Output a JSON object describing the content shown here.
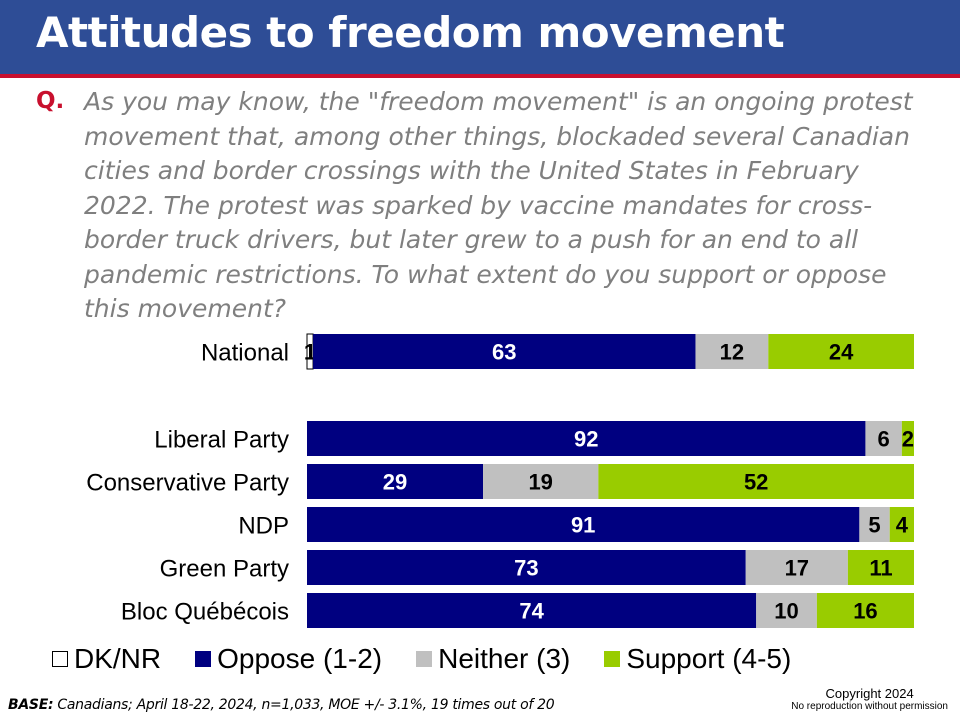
{
  "title": "Attitudes to freedom movement",
  "question": {
    "marker": "Q.",
    "text": "As you may know, the \"freedom movement\" is an ongoing protest movement that, among other things, blockaded several Canadian cities and border crossings with the United States in February 2022. The protest was sparked by vaccine mandates for cross-border truck drivers, but later grew to a push for an end to all pandemic restrictions. To what extent do you support or oppose this movement?"
  },
  "colors": {
    "header": "#2e4d96",
    "header_rule": "#c8102e",
    "dk_nr": "#ffffff",
    "oppose": "#000080",
    "neither": "#c0c0c0",
    "support": "#99cc00"
  },
  "chart_data": {
    "type": "bar",
    "orientation": "horizontal",
    "stacked": true,
    "categories": [
      "National",
      "Liberal Party",
      "Conservative Party",
      "NDP",
      "Green Party",
      "Bloc Québécois"
    ],
    "series": [
      {
        "name": "DK/NR",
        "values": [
          1,
          0,
          0,
          0,
          0,
          0
        ]
      },
      {
        "name": "Oppose (1-2)",
        "values": [
          63,
          92,
          29,
          91,
          73,
          74
        ]
      },
      {
        "name": "Neither (3)",
        "values": [
          12,
          6,
          19,
          5,
          17,
          10
        ]
      },
      {
        "name": "Support (4-5)",
        "values": [
          24,
          2,
          52,
          4,
          11,
          16
        ]
      }
    ],
    "legend_position": "bottom",
    "grid": false
  },
  "legend": {
    "items": [
      {
        "label": "DK/NR",
        "color": "#ffffff"
      },
      {
        "label": "Oppose (1-2)",
        "color": "#000080"
      },
      {
        "label": "Neither (3)",
        "color": "#c0c0c0"
      },
      {
        "label": "Support (4-5)",
        "color": "#99cc00"
      }
    ]
  },
  "footer": {
    "base_label": "BASE:",
    "base_text": "Canadians; April 18-22, 2024, n=1,033, MOE +/- 3.1%, 19 times out of 20",
    "copyright": "Copyright 2024",
    "no_reproduction": "No reproduction without permission"
  }
}
